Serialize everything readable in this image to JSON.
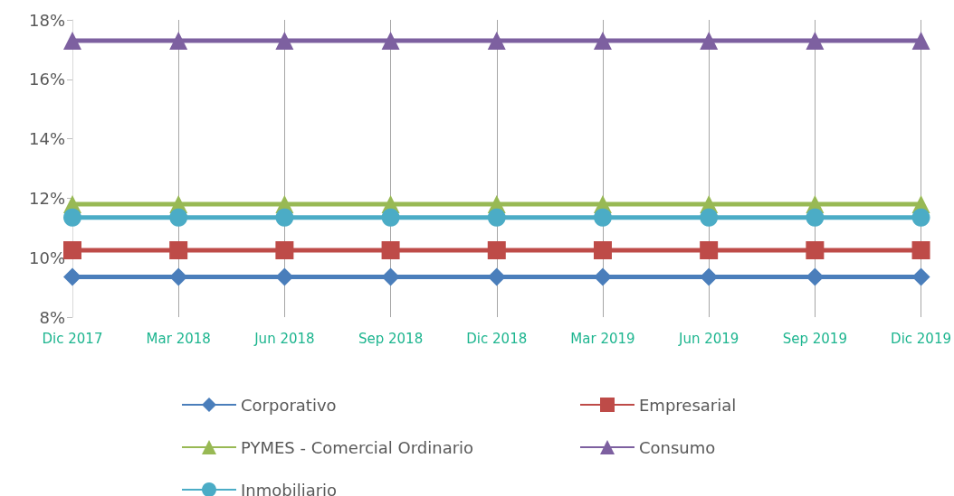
{
  "chart_data": {
    "type": "line",
    "categories": [
      "Dic 2017",
      "Mar 2018",
      "Jun 2018",
      "Sep 2018",
      "Dic 2018",
      "Mar 2019",
      "Jun 2019",
      "Sep 2019",
      "Dic 2019"
    ],
    "series": [
      {
        "name": "Corporativo",
        "color": "#4a7ebb",
        "marker": "diamond",
        "values": [
          9.35,
          9.35,
          9.35,
          9.35,
          9.35,
          9.35,
          9.35,
          9.35,
          9.35
        ]
      },
      {
        "name": "Empresarial",
        "color": "#be4b48",
        "marker": "square",
        "values": [
          10.25,
          10.25,
          10.25,
          10.25,
          10.25,
          10.25,
          10.25,
          10.25,
          10.25
        ]
      },
      {
        "name": "PYMES - Comercial Ordinario",
        "color": "#98b954",
        "marker": "triangle",
        "values": [
          11.8,
          11.8,
          11.8,
          11.8,
          11.8,
          11.8,
          11.8,
          11.8,
          11.8
        ]
      },
      {
        "name": "Consumo",
        "color": "#7d60a0",
        "marker": "triangle",
        "values": [
          17.3,
          17.3,
          17.3,
          17.3,
          17.3,
          17.3,
          17.3,
          17.3,
          17.3
        ]
      },
      {
        "name": "Inmobiliario",
        "color": "#4bacc6",
        "marker": "circle",
        "values": [
          11.35,
          11.35,
          11.35,
          11.35,
          11.35,
          11.35,
          11.35,
          11.35,
          11.35
        ]
      }
    ],
    "ylim": [
      8,
      18
    ],
    "yticks": [
      {
        "value": 8,
        "label": "8%"
      },
      {
        "value": 10,
        "label": "10%"
      },
      {
        "value": 12,
        "label": "12%"
      },
      {
        "value": 14,
        "label": "14%"
      },
      {
        "value": 16,
        "label": "16%"
      },
      {
        "value": 18,
        "label": "18%"
      }
    ],
    "grid": "x",
    "legend": "bottom",
    "line_style": "solid"
  }
}
